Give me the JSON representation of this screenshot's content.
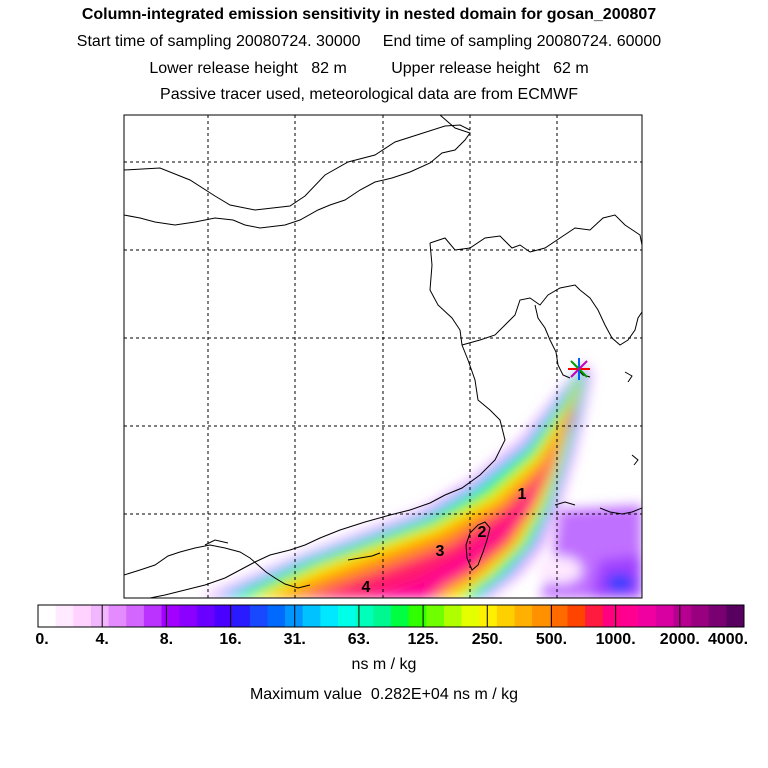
{
  "header": {
    "title": "Column-integrated emission sensitivity in nested domain for gosan_200807",
    "sampling": "Start time of sampling 20080724. 30000     End time of sampling 20080724. 60000",
    "heights": "Lower release height   82 m          Upper release height   62 m",
    "tracer": "Passive tracer used, meteorological data are from ECMWF"
  },
  "map": {
    "region_labels": [
      "1",
      "2",
      "3",
      "4"
    ],
    "receptor_marker": "star-marker"
  },
  "colorbar": {
    "labels": [
      "0.",
      "4.",
      "8.",
      "16.",
      "31.",
      "63.",
      "125.",
      "250.",
      "500.",
      "1000.",
      "2000.",
      "4000."
    ],
    "unit": "ns m / kg",
    "max_value": "Maximum value  0.282E+04 ns m / kg",
    "colors": [
      "#ffffff",
      "#ffeaff",
      "#ffd2ff",
      "#f2b6ff",
      "#e48cff",
      "#d266ff",
      "#bb33ff",
      "#a400ff",
      "#8c00ff",
      "#6a00ff",
      "#4a00ff",
      "#2a1aff",
      "#1848ff",
      "#006aff",
      "#0096ff",
      "#00c2ff",
      "#00e8ff",
      "#00ffe8",
      "#00ffb8",
      "#00f890",
      "#00ff40",
      "#30ff00",
      "#70ff00",
      "#b0ff00",
      "#e4ff00",
      "#fff000",
      "#ffd000",
      "#ffb000",
      "#ff9000",
      "#ff6a00",
      "#ff4400",
      "#ff1a40",
      "#ff0080",
      "#ff0090",
      "#f000a0",
      "#d800a0",
      "#b80090",
      "#980080",
      "#780070",
      "#580060"
    ]
  }
}
